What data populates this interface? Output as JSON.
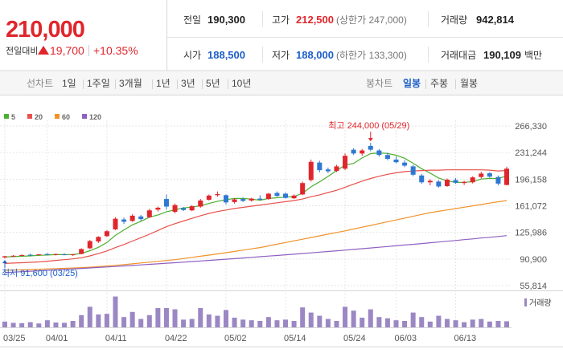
{
  "header": {
    "price": "210,000",
    "change_label": "전일대비",
    "change": "19,700",
    "change_rate": "+10.35%",
    "stats": [
      {
        "label": "전일",
        "value": "190,300"
      },
      {
        "label": "고가",
        "value": "212,500",
        "note": "(상한가 247,000)"
      },
      {
        "label": "거래량",
        "value": "942,814"
      },
      {
        "label": "시가",
        "value": "188,500"
      },
      {
        "label": "저가",
        "value": "188,000",
        "note": "(하한가 133,300)"
      },
      {
        "label": "거래대금",
        "value": "190,109",
        "unit": "백만"
      }
    ]
  },
  "tabs": {
    "line_label": "선차트",
    "line_periods": [
      "1일",
      "1주일",
      "3개월",
      "1년",
      "3년",
      "5년",
      "10년"
    ],
    "candle_label": "봉차트",
    "candle_periods": [
      "일봉",
      "주봉",
      "월봉"
    ],
    "active_candle": "일봉"
  },
  "chart_data": {
    "type": "candlestick",
    "categories": [
      "03/25",
      null,
      null,
      null,
      null,
      "04/01",
      null,
      null,
      null,
      null,
      null,
      null,
      "04/11",
      null,
      null,
      null,
      null,
      null,
      null,
      "04/22",
      null,
      null,
      null,
      null,
      null,
      null,
      "05/02",
      null,
      null,
      null,
      null,
      null,
      null,
      "05/14",
      null,
      null,
      null,
      null,
      null,
      null,
      "05/24",
      null,
      null,
      null,
      null,
      null,
      "06/03",
      null,
      null,
      null,
      null,
      null,
      null,
      "06/13",
      null,
      null,
      null,
      null,
      null,
      null
    ],
    "open": [
      93000,
      94500,
      95500,
      96500,
      96000,
      97500,
      96500,
      97000,
      96000,
      97500,
      105000,
      114000,
      121000,
      130000,
      143000,
      141000,
      147000,
      146000,
      156000,
      170000,
      153000,
      158000,
      155000,
      160000,
      169000,
      175000,
      175000,
      166000,
      170000,
      168000,
      170500,
      170000,
      178000,
      177000,
      171000,
      176000,
      195000,
      218000,
      209000,
      207000,
      210000,
      235000,
      230000,
      240000,
      234000,
      228000,
      222000,
      218000,
      213000,
      201000,
      192000,
      193000,
      187000,
      195000,
      191000,
      192000,
      199000,
      204000,
      199000,
      188500
    ],
    "high": [
      95000,
      96000,
      97000,
      98000,
      97500,
      98500,
      98000,
      98500,
      97500,
      105000,
      116000,
      121000,
      129000,
      146000,
      145500,
      150000,
      149000,
      157000,
      160000,
      176000,
      164000,
      159500,
      162000,
      170000,
      176000,
      180000,
      176000,
      171000,
      172000,
      171500,
      175000,
      178000,
      180000,
      178500,
      176000,
      193000,
      222000,
      220500,
      211500,
      215000,
      230000,
      237000,
      236000,
      244000,
      236000,
      231000,
      226000,
      221000,
      215000,
      203000,
      196000,
      195000,
      197000,
      197500,
      194000,
      200000,
      206000,
      205500,
      201000,
      212500
    ],
    "low": [
      91600,
      93500,
      94500,
      95000,
      95200,
      96000,
      95500,
      95800,
      95000,
      97000,
      104000,
      112000,
      120000,
      129000,
      137000,
      140000,
      141000,
      145000,
      153500,
      156000,
      151000,
      154000,
      154000,
      158500,
      168000,
      173000,
      163000,
      164000,
      166000,
      166500,
      168000,
      169000,
      173000,
      170500,
      170000,
      175000,
      193000,
      205000,
      204000,
      205500,
      208000,
      228000,
      227000,
      233000,
      226000,
      221000,
      217000,
      212000,
      200000,
      190000,
      188000,
      185000,
      186000,
      190000,
      188500,
      190500,
      197000,
      198000,
      188000,
      188000
    ],
    "close": [
      94500,
      95200,
      96000,
      95800,
      97000,
      96500,
      97500,
      96200,
      97000,
      104000,
      114500,
      120000,
      127500,
      144000,
      140000,
      148000,
      143500,
      155000,
      158500,
      160000,
      162000,
      155500,
      160500,
      168000,
      174500,
      176500,
      165500,
      169500,
      167500,
      170500,
      169000,
      177000,
      174000,
      171500,
      174500,
      191000,
      219000,
      208000,
      206500,
      213000,
      227000,
      230000,
      234000,
      235000,
      228000,
      223000,
      218500,
      214000,
      202000,
      192000,
      194000,
      186500,
      195500,
      191500,
      192500,
      198500,
      203500,
      199500,
      190300,
      210000
    ],
    "up_color": "#e0262c",
    "down_color": "#2e78d2",
    "ylim": [
      55814,
      266330
    ],
    "yticks": [
      {
        "value": 266330,
        "label": "266,330"
      },
      {
        "value": 231244,
        "label": "231,244"
      },
      {
        "value": 196158,
        "label": "196,158"
      },
      {
        "value": 161072,
        "label": "161,072"
      },
      {
        "value": 125986,
        "label": "125,986"
      },
      {
        "value": 90900,
        "label": "90,900"
      },
      {
        "value": 55814,
        "label": "55,814"
      }
    ],
    "grid": true,
    "moving_averages": [
      {
        "name": "5",
        "color": "#4caf30",
        "values": [
          93500,
          94000,
          94500,
          95000,
          95700,
          96100,
          96600,
          96600,
          96800,
          98200,
          101800,
          106300,
          112600,
          122000,
          129200,
          135900,
          140600,
          146100,
          149000,
          153000,
          155800,
          158200,
          159300,
          161200,
          164100,
          167000,
          169000,
          170800,
          170700,
          169900,
          168400,
          170700,
          171600,
          172400,
          173200,
          177600,
          186000,
          192600,
          199800,
          207500,
          214700,
          216900,
          224100,
          229800,
          230800,
          230000,
          227700,
          223700,
          217100,
          209900,
          204100,
          197700,
          194000,
          191900,
          192000,
          192900,
          196300,
          197100,
          196900,
          200400
        ]
      },
      {
        "name": "20",
        "color": "#e8504a",
        "values": [
          85000,
          85500,
          86000,
          86500,
          87000,
          88000,
          89000,
          90000,
          91000,
          92500,
          95000,
          98000,
          101500,
          106000,
          110000,
          114500,
          119000,
          123500,
          128500,
          133500,
          137500,
          141000,
          144500,
          148000,
          151000,
          153500,
          155500,
          157500,
          159000,
          160500,
          162000,
          163500,
          165000,
          166500,
          168000,
          170000,
          173000,
          175500,
          178500,
          181500,
          185500,
          189500,
          193500,
          197000,
          200000,
          202500,
          204500,
          206000,
          207000,
          207500,
          208000,
          208000,
          208500,
          208500,
          208500,
          208500,
          208500,
          208000,
          207000,
          207500
        ]
      },
      {
        "name": "60",
        "color": "#f0922b",
        "values": [
          76000,
          76300,
          76600,
          77000,
          77400,
          77800,
          78200,
          78600,
          79000,
          79500,
          80000,
          80800,
          81600,
          82500,
          83500,
          84500,
          85600,
          86700,
          87800,
          88900,
          90000,
          91500,
          93000,
          94500,
          96000,
          97600,
          99200,
          100900,
          102600,
          104300,
          106000,
          108200,
          110400,
          112600,
          114800,
          117000,
          119200,
          121400,
          123600,
          125800,
          128000,
          130400,
          132800,
          135200,
          137600,
          140000,
          142400,
          144800,
          147200,
          149600,
          152000,
          153800,
          155600,
          157400,
          159200,
          161000,
          162800,
          164600,
          166400,
          168000
        ]
      },
      {
        "name": "120",
        "color": "#8e5fc0",
        "values": [
          73000,
          73600,
          74100,
          74700,
          75300,
          75900,
          76500,
          77100,
          77800,
          78400,
          79100,
          79700,
          80400,
          81000,
          81700,
          82400,
          83100,
          83800,
          84500,
          85300,
          86000,
          86700,
          87500,
          88300,
          89000,
          89800,
          90600,
          91400,
          92200,
          93000,
          93900,
          94700,
          95500,
          96400,
          97200,
          98100,
          99000,
          99900,
          100800,
          101700,
          102600,
          103500,
          104500,
          105400,
          106400,
          107300,
          108300,
          109300,
          110200,
          111200,
          112300,
          113300,
          114300,
          115300,
          116400,
          117400,
          118500,
          119500,
          120600,
          121700
        ]
      }
    ],
    "volume": {
      "name": "거래량",
      "color": "#9b87c4",
      "ylim": [
        0,
        5000000
      ],
      "values": [
        900000,
        700000,
        650000,
        800000,
        600000,
        1100000,
        750000,
        700000,
        1000000,
        1900000,
        3200000,
        2000000,
        2100000,
        4800000,
        1600000,
        2400000,
        1300000,
        1900000,
        3000000,
        3000000,
        2800000,
        1200000,
        1300000,
        3000000,
        2000000,
        1800000,
        2700000,
        1500000,
        1200000,
        1100000,
        1000000,
        1600000,
        1100000,
        1200000,
        1000000,
        3100000,
        2300000,
        1800000,
        1300000,
        1000000,
        3200000,
        2600000,
        1500000,
        2800000,
        1600000,
        1400000,
        1100000,
        1000000,
        2300000,
        1600000,
        900000,
        1800000,
        1300000,
        1100000,
        800000,
        1200000,
        1300000,
        900000,
        1000000,
        942814
      ]
    },
    "annotations": {
      "high": "최고 244,000 (05/29)",
      "low": "최저 91,600 (03/25)"
    }
  }
}
